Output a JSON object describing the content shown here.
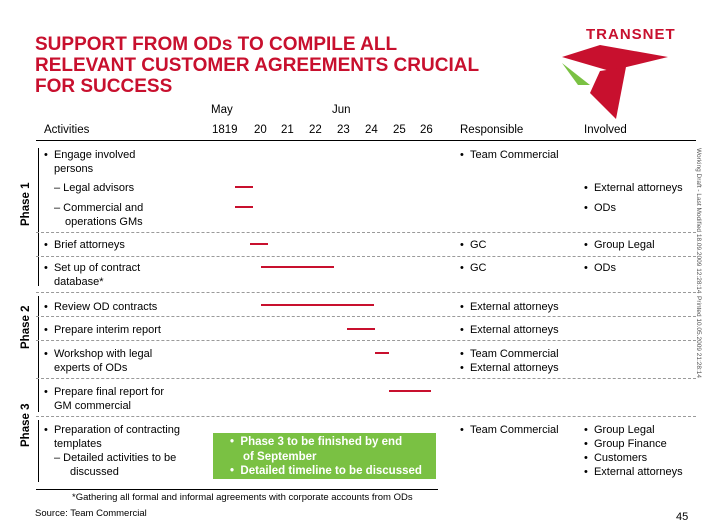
{
  "title_lines": [
    "SUPPORT FROM ODs TO COMPILE ALL",
    "RELEVANT CUSTOMER AGREEMENTS CRUCIAL",
    "FOR SUCCESS"
  ],
  "logo": {
    "text": "TRANSNET",
    "colors": {
      "red": "#c8102e",
      "green": "#7ac143"
    }
  },
  "header": {
    "month_may": "May",
    "month_jun": "Jun",
    "activities": "Activities",
    "days": [
      "1819",
      "20",
      "21",
      "22",
      "23",
      "24",
      "25",
      "26"
    ],
    "responsible": "Responsible",
    "involved": "Involved"
  },
  "phases": [
    "Phase 1",
    "Phase 2",
    "Phase 3"
  ],
  "rows": {
    "engage": {
      "line1": "Engage involved",
      "line2": "persons",
      "responsible": "Team Commercial"
    },
    "legal_advisors": {
      "text": "– Legal advisors",
      "involved": "External attorneys"
    },
    "commercial_gms": {
      "line1": "– Commercial and",
      "line2": "operations GMs",
      "involved": "ODs"
    },
    "brief": {
      "text": "Brief attorneys",
      "responsible": "GC",
      "involved": "Group Legal"
    },
    "setup": {
      "line1": "Set up of contract",
      "line2": "database*",
      "responsible": "GC",
      "involved": "ODs"
    },
    "review": {
      "text": "Review OD contracts",
      "responsible": "External attorneys"
    },
    "interim": {
      "text": "Prepare interim report",
      "responsible": "External attorneys"
    },
    "workshop": {
      "line1": "Workshop with legal",
      "line2": "experts of ODs",
      "responsible1": "Team Commercial",
      "responsible2": "External attorneys"
    },
    "final": {
      "line1": "Prepare final report for",
      "line2": "GM commercial"
    },
    "contracting": {
      "line1": "Preparation of contracting",
      "line2": "templates",
      "line3": "– Detailed activities to be",
      "line4": "discussed",
      "responsible": "Team Commercial",
      "involved": [
        "Group Legal",
        "Group Finance",
        "Customers",
        "External attorneys"
      ]
    }
  },
  "phase3_note": [
    "Phase 3 to be finished by end",
    "of September",
    "Detailed timeline to be discussed"
  ],
  "footnote": "*Gathering all formal and informal agreements with corporate accounts from ODs",
  "source": "Source: Team Commercial",
  "page_number": "45",
  "side_text_1": "Working Draft - Last Modified 18.09.2009 12:28:14",
  "side_text_2": "Printed 10.05.2009 21:28:14"
}
